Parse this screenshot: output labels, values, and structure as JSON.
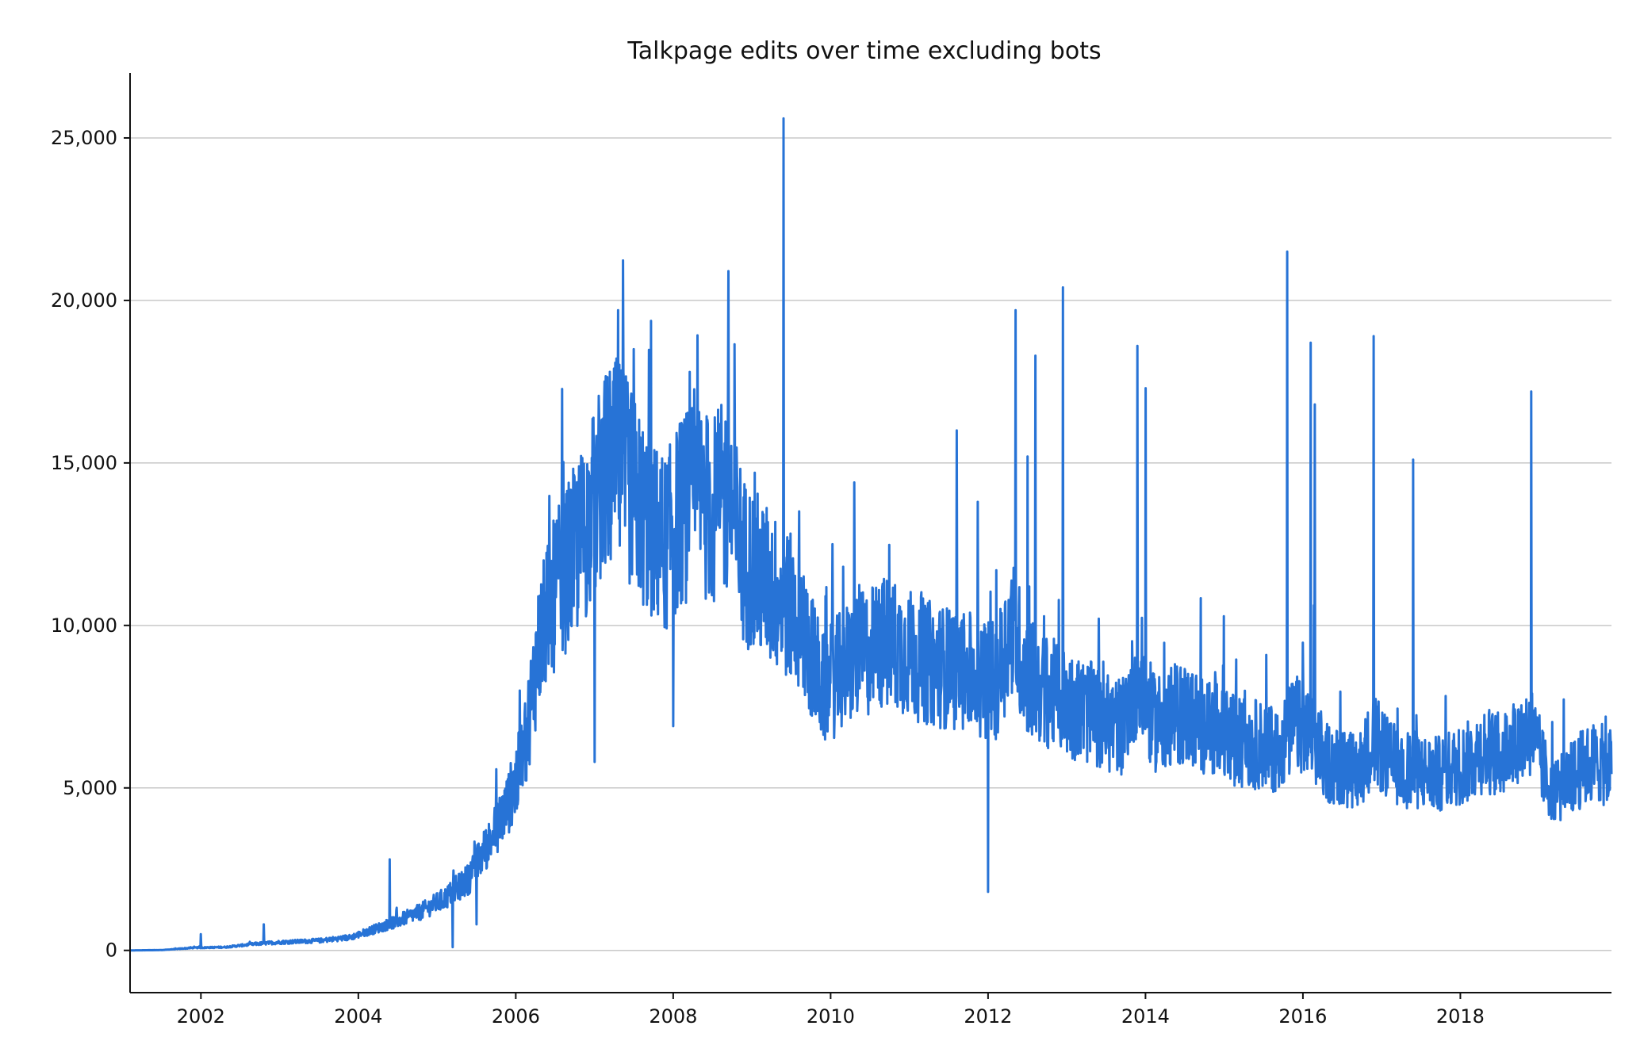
{
  "chart_data": {
    "type": "line",
    "title": "Talkpage edits over time excluding bots",
    "xlabel": "",
    "ylabel": "",
    "xlim": [
      2001.1,
      2019.92
    ],
    "ylim": [
      -1300,
      27000
    ],
    "x_ticks": [
      2002,
      2004,
      2006,
      2008,
      2010,
      2012,
      2014,
      2016,
      2018
    ],
    "x_tick_labels": [
      "2002",
      "2004",
      "2006",
      "2008",
      "2010",
      "2012",
      "2014",
      "2016",
      "2018"
    ],
    "y_ticks": [
      0,
      5000,
      10000,
      15000,
      20000,
      25000
    ],
    "y_tick_labels": [
      "0",
      "5,000",
      "10,000",
      "15,000",
      "20,000",
      "25,000"
    ],
    "grid": "horizontal",
    "line_color": "#2773d6",
    "series": [
      {
        "x": [
          2001.1,
          2001.5,
          2001.9,
          2002.3,
          2002.7,
          2003.0,
          2003.5,
          2003.9,
          2004.2,
          2004.5,
          2004.8,
          2005.1,
          2005.4,
          2005.7,
          2005.9,
          2006.1,
          2006.3,
          2006.5,
          2006.7,
          2006.9,
          2007.1,
          2007.3,
          2007.5,
          2007.7,
          2007.9,
          2008.1,
          2008.3,
          2008.5,
          2008.7,
          2008.9,
          2009.1,
          2009.3,
          2009.5,
          2009.7,
          2009.9,
          2010.1,
          2010.3,
          2010.5,
          2010.7,
          2010.9,
          2011.1,
          2011.3,
          2011.5,
          2011.7,
          2011.9,
          2012.1,
          2012.3,
          2012.5,
          2012.7,
          2012.9,
          2013.1,
          2013.3,
          2013.5,
          2013.7,
          2013.9,
          2014.1,
          2014.3,
          2014.5,
          2014.7,
          2014.9,
          2015.1,
          2015.3,
          2015.5,
          2015.7,
          2015.9,
          2016.1,
          2016.3,
          2016.5,
          2016.7,
          2016.9,
          2017.1,
          2017.3,
          2017.5,
          2017.7,
          2017.9,
          2018.1,
          2018.3,
          2018.5,
          2018.7,
          2018.9,
          2019.1,
          2019.3,
          2019.5,
          2019.7,
          2019.92
        ],
        "values": [
          0,
          10,
          80,
          100,
          200,
          250,
          300,
          400,
          650,
          900,
          1200,
          1600,
          2200,
          3500,
          4500,
          6000,
          9500,
          11000,
          12000,
          13000,
          14500,
          15000,
          14000,
          13000,
          12500,
          13500,
          14000,
          13500,
          14000,
          12000,
          11500,
          11000,
          10500,
          9500,
          8000,
          8500,
          9000,
          9200,
          9500,
          9300,
          9000,
          8800,
          8700,
          8600,
          8400,
          8300,
          10000,
          8500,
          8000,
          7800,
          7500,
          7300,
          7000,
          6900,
          8500,
          7000,
          7200,
          7300,
          7000,
          6800,
          6500,
          6400,
          6300,
          6200,
          7000,
          6500,
          5800,
          5600,
          5500,
          6500,
          5800,
          5600,
          5500,
          5400,
          5600,
          5800,
          6200,
          6000,
          6500,
          6800,
          5200,
          5000,
          5500,
          5800,
          5600
        ]
      },
      {
        "name": "",
        "spike_x": [
          2002.0,
          2002.8,
          2004.4,
          2005.2,
          2005.5,
          2007.0,
          2007.3,
          2007.5,
          2008.0,
          2008.7,
          2009.4,
          2009.4,
          2010.3,
          2011.6,
          2012.0,
          2012.35,
          2012.5,
          2012.6,
          2012.95,
          2013.9,
          2014.0,
          2015.8,
          2016.1,
          2016.15,
          2016.9,
          2017.4,
          2018.9
        ],
        "spike_values": [
          500,
          800,
          2800,
          100,
          800,
          5800,
          19700,
          18500,
          6900,
          20900,
          21500,
          25600,
          14400,
          16000,
          1800,
          19700,
          15200,
          18300,
          20400,
          18600,
          17300,
          21500,
          18700,
          16800,
          18900,
          15100,
          17200
        ]
      }
    ]
  }
}
